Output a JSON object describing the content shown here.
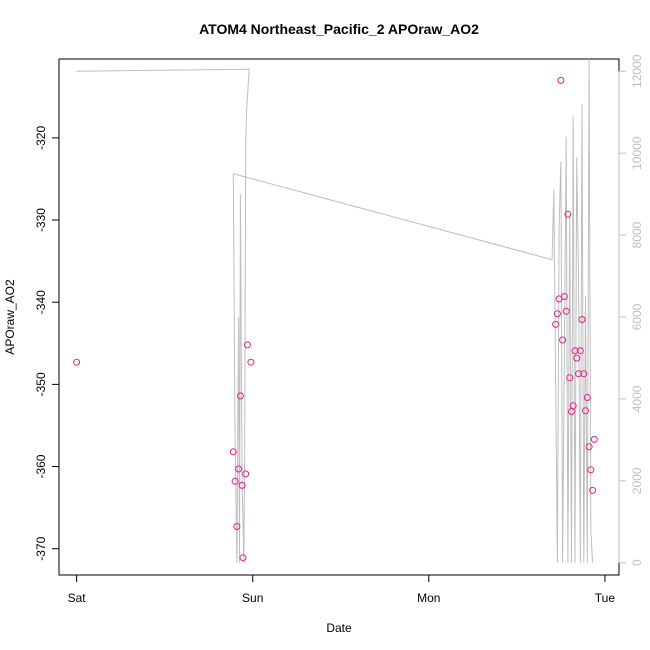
{
  "chart_data": {
    "type": "scatter",
    "title": "ATOM4 Northeast_Pacific_2 APOraw_AO2",
    "xlabel": "Date",
    "ylabel": "APOraw_AO2",
    "x_ticks": [
      {
        "label": "Sat",
        "value": 0
      },
      {
        "label": "Sun",
        "value": 1
      },
      {
        "label": "Mon",
        "value": 2
      },
      {
        "label": "Tue",
        "value": 3
      }
    ],
    "xlim": [
      -0.1,
      3.08
    ],
    "ylim": [
      -373.2,
      -310.4
    ],
    "y_ticks": [
      -370,
      -360,
      -350,
      -340,
      -330,
      -320
    ],
    "y2lim": [
      -300,
      12300
    ],
    "y2_ticks": [
      0,
      2000,
      4000,
      6000,
      8000,
      10000,
      12000
    ],
    "colors": {
      "points": "#e0218a",
      "line": "#bebebe"
    },
    "series": [
      {
        "axis": "left",
        "style": "points",
        "x": [
          0.0,
          0.89,
          0.9,
          0.91,
          0.92,
          0.93,
          0.94,
          0.945,
          0.96,
          0.97,
          0.99,
          2.72,
          2.73,
          2.74,
          2.75,
          2.76,
          2.77,
          2.78,
          2.79,
          2.8,
          2.81,
          2.82,
          2.83,
          2.84,
          2.85,
          2.86,
          2.87,
          2.88,
          2.89,
          2.9,
          2.91,
          2.92,
          2.93,
          2.94
        ],
        "y": [
          -347.3,
          -358.2,
          -361.8,
          -367.3,
          -360.3,
          -351.4,
          -362.3,
          -371.1,
          -360.9,
          -345.2,
          -347.3,
          -342.7,
          -341.4,
          -339.6,
          -313.0,
          -344.6,
          -339.3,
          -341.1,
          -329.3,
          -349.2,
          -353.3,
          -352.6,
          -345.9,
          -346.8,
          -348.7,
          -345.9,
          -342.1,
          -348.7,
          -353.2,
          -351.6,
          -357.6,
          -360.4,
          -362.9,
          -356.7
        ]
      },
      {
        "axis": "right",
        "style": "line",
        "x": [
          0.0,
          0.98,
          0.965,
          0.96,
          0.955,
          0.95,
          0.94,
          0.93,
          0.925,
          0.92,
          0.91,
          0.9,
          0.89,
          2.7,
          2.71,
          2.73,
          2.74,
          2.75,
          2.76,
          2.78,
          2.79,
          2.8,
          2.81,
          2.82,
          2.83,
          2.84,
          2.85,
          2.86,
          2.87,
          2.88,
          2.89,
          2.9,
          2.91,
          2.92,
          2.93
        ],
        "y": [
          12000,
          12050,
          11000,
          10200,
          3500,
          0,
          2000,
          9000,
          0,
          6000,
          0,
          3000,
          9500,
          7400,
          9100,
          0,
          8200,
          9800,
          0,
          10400,
          0,
          8500,
          0,
          10900,
          0,
          9900,
          7000,
          0,
          11200,
          0,
          6500,
          0,
          12300,
          800,
          0
        ]
      }
    ]
  }
}
